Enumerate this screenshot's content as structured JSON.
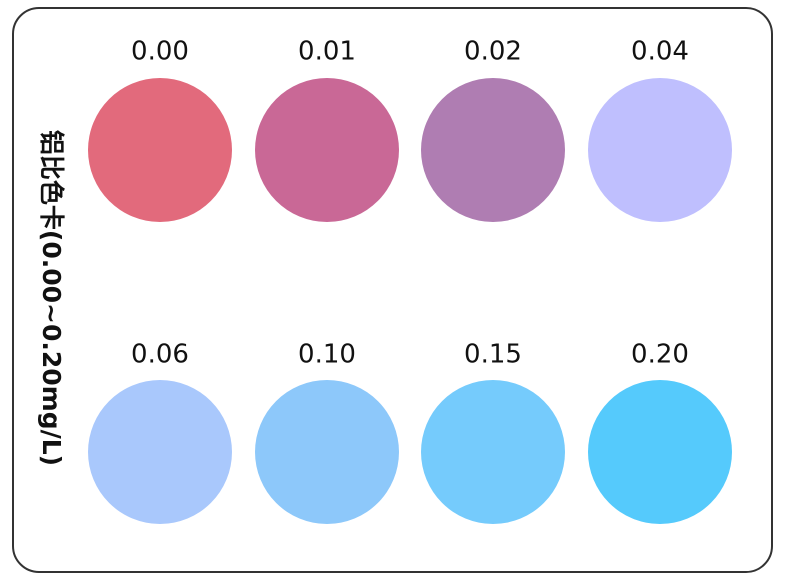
{
  "card": {
    "title": "铝比色卡(0.00~0.20mg/L)",
    "swatches": [
      {
        "label": "0.00",
        "color": "#e26a7c"
      },
      {
        "label": "0.01",
        "color": "#c96896"
      },
      {
        "label": "0.02",
        "color": "#af7db2"
      },
      {
        "label": "0.04",
        "color": "#bfbffe"
      },
      {
        "label": "0.06",
        "color": "#a9c8fc"
      },
      {
        "label": "0.10",
        "color": "#8dc8fa"
      },
      {
        "label": "0.15",
        "color": "#75cbfc"
      },
      {
        "label": "0.20",
        "color": "#55cafc"
      }
    ]
  }
}
